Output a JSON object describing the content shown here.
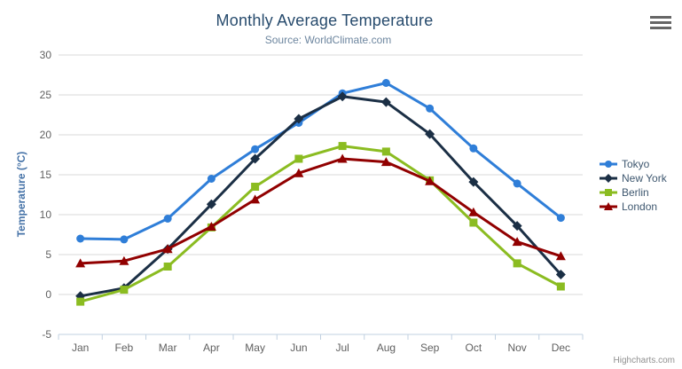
{
  "header": {
    "title": "Monthly Average Temperature",
    "subtitle": "Source: WorldClimate.com"
  },
  "credits": {
    "label": "Highcharts.com"
  },
  "context_menu": {
    "icon": "hamburger-menu-icon"
  },
  "chart_data": {
    "type": "line",
    "title": "Monthly Average Temperature",
    "subtitle": "Source: WorldClimate.com",
    "xlabel": "",
    "ylabel": "Temperature (°C)",
    "ylim": [
      -5,
      30
    ],
    "ytick_interval": 5,
    "ytick_labels": [
      "-5",
      "0",
      "5",
      "10",
      "15",
      "20",
      "25",
      "30"
    ],
    "grid": true,
    "legend_position": "right",
    "categories": [
      "Jan",
      "Feb",
      "Mar",
      "Apr",
      "May",
      "Jun",
      "Jul",
      "Aug",
      "Sep",
      "Oct",
      "Nov",
      "Dec"
    ],
    "series": [
      {
        "name": "Tokyo",
        "color": "#2f7ed8",
        "marker": "circle",
        "values": [
          7.0,
          6.9,
          9.5,
          14.5,
          18.2,
          21.5,
          25.2,
          26.5,
          23.3,
          18.3,
          13.9,
          9.6
        ]
      },
      {
        "name": "New York",
        "color": "#1b2f45",
        "marker": "diamond",
        "values": [
          -0.2,
          0.8,
          5.7,
          11.3,
          17.0,
          22.0,
          24.8,
          24.1,
          20.1,
          14.1,
          8.6,
          2.5
        ]
      },
      {
        "name": "Berlin",
        "color": "#8bbc21",
        "marker": "square",
        "values": [
          -0.9,
          0.6,
          3.5,
          8.4,
          13.5,
          17.0,
          18.6,
          17.9,
          14.3,
          9.0,
          3.9,
          1.0
        ]
      },
      {
        "name": "London",
        "color": "#910000",
        "marker": "triangle",
        "values": [
          3.9,
          4.2,
          5.7,
          8.5,
          11.9,
          15.2,
          17.0,
          16.6,
          14.2,
          10.3,
          6.6,
          4.8
        ]
      }
    ],
    "colors": {
      "gridline": "#d8d8d8",
      "axis_line": "#c0d0e0",
      "tick": "#c0d0e0",
      "axis_label": "#606060",
      "title": "#274b6d",
      "subtitle": "#6d869f",
      "y_axis_title": "#4572a7"
    }
  }
}
